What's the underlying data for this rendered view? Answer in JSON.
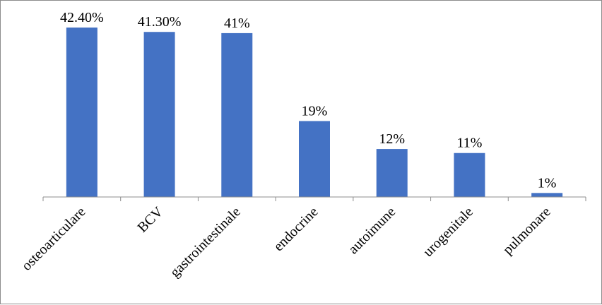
{
  "chart_data": {
    "type": "bar",
    "categories": [
      "osteoarticulare",
      "BCV",
      "gastrointestinale",
      "endocrine",
      "autoimune",
      "urogenitale",
      "pulmonare"
    ],
    "values": [
      42.4,
      41.3,
      41,
      19,
      12,
      11,
      1
    ],
    "data_labels": [
      "42.40%",
      "41.30%",
      "41%",
      "19%",
      "12%",
      "11%",
      "1%"
    ],
    "title": "",
    "xlabel": "",
    "ylabel": "",
    "ylim": [
      0,
      42.4
    ],
    "grid": false,
    "legend": "none",
    "colors": {
      "bar": "#4472c4",
      "axis": "#8c8c8c"
    }
  }
}
